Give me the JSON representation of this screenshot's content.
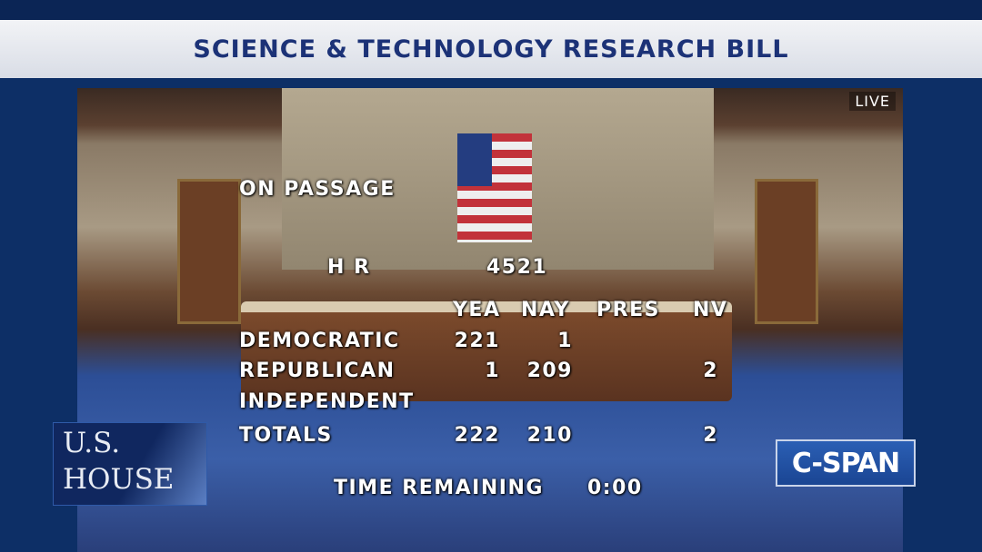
{
  "banner": {
    "title": "SCIENCE & TECHNOLOGY RESEARCH BILL"
  },
  "video": {
    "live_label": "LIVE"
  },
  "vote": {
    "heading": "ON PASSAGE",
    "bill_prefix": "H R",
    "bill_number": "4521",
    "columns": [
      "YEA",
      "NAY",
      "PRES",
      "NV"
    ],
    "rows": [
      {
        "party": "DEMOCRATIC",
        "yea": "221",
        "nay": "1",
        "pres": "",
        "nv": ""
      },
      {
        "party": "REPUBLICAN",
        "yea": "1",
        "nay": "209",
        "pres": "",
        "nv": "2"
      },
      {
        "party": "INDEPENDENT",
        "yea": "",
        "nay": "",
        "pres": "",
        "nv": ""
      },
      {
        "party": "TOTALS",
        "yea": "222",
        "nay": "210",
        "pres": "",
        "nv": "2"
      }
    ],
    "time_label": "TIME REMAINING",
    "time_value": "0:00"
  },
  "logos": {
    "house": [
      "U.S.",
      "HOUSE"
    ],
    "network": "C-SPAN"
  },
  "colors": {
    "title_text": "#1c3277",
    "frame": "#0d2f66",
    "cspan": "#1a4593"
  }
}
